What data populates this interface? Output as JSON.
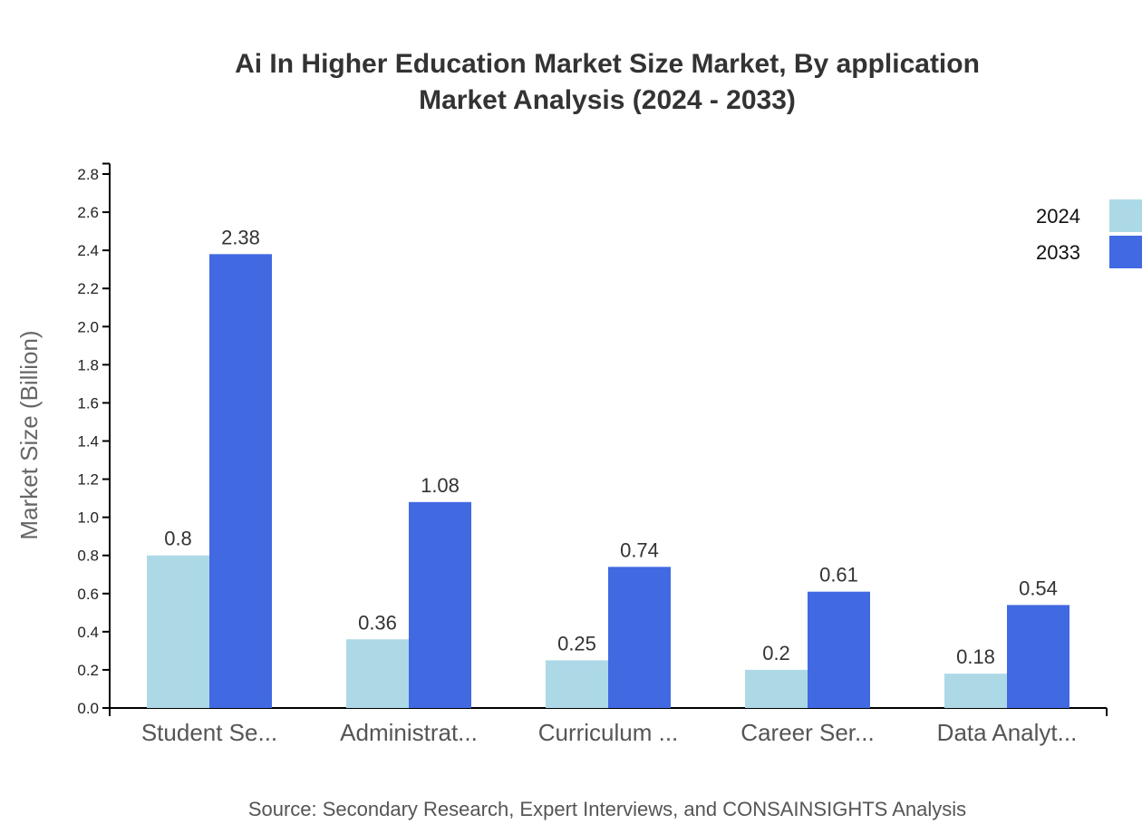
{
  "chart_data": {
    "type": "bar",
    "title_line1": "Ai In Higher Education Market Size Market, By application",
    "title_line2": "Market Analysis (2024 - 2033)",
    "xlabel": "",
    "ylabel": "Market Size (Billion)",
    "ylim": [
      0,
      2.85
    ],
    "yticks": [
      "0.0",
      "0.2",
      "0.4",
      "0.6",
      "0.8",
      "1.0",
      "1.2",
      "1.4",
      "1.6",
      "1.8",
      "2.0",
      "2.2",
      "2.4",
      "2.6",
      "2.8"
    ],
    "grid": false,
    "legend_position": "top-right",
    "categories": [
      "Student Se...",
      "Administrat...",
      "Curriculum ...",
      "Career Ser...",
      "Data Analyt..."
    ],
    "series": [
      {
        "name": "2024",
        "color": "#add8e6",
        "values": [
          0.8,
          0.36,
          0.25,
          0.2,
          0.18
        ],
        "labels": [
          "0.8",
          "0.36",
          "0.25",
          "0.2",
          "0.18"
        ]
      },
      {
        "name": "2033",
        "color": "#4169e1",
        "values": [
          2.38,
          1.08,
          0.74,
          0.61,
          0.54
        ],
        "labels": [
          "2.38",
          "1.08",
          "0.74",
          "0.61",
          "0.54"
        ]
      }
    ],
    "source": "Source: Secondary Research, Expert Interviews, and CONSAINSIGHTS Analysis"
  }
}
